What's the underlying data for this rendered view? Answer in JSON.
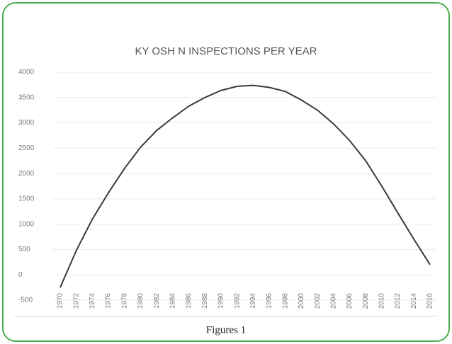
{
  "chart_data": {
    "type": "line",
    "title": "KY OSH N INSPECTIONS  PER YEAR",
    "caption": "Figures 1",
    "categories": [
      "1970",
      "1972",
      "1974",
      "1976",
      "1978",
      "1980",
      "1982",
      "1984",
      "1986",
      "1988",
      "1990",
      "1992",
      "1994",
      "1996",
      "1998",
      "2000",
      "2002",
      "2004",
      "2006",
      "2008",
      "2010",
      "2012",
      "2014",
      "2016"
    ],
    "series": [
      {
        "name": "Inspections",
        "color": "#3a3a3a",
        "values": [
          -250,
          480,
          1100,
          1620,
          2100,
          2520,
          2850,
          3100,
          3330,
          3500,
          3640,
          3720,
          3740,
          3700,
          3620,
          3450,
          3250,
          2980,
          2650,
          2250,
          1750,
          1220,
          700,
          200
        ]
      }
    ],
    "ylim": [
      -500,
      4000
    ],
    "yticks": [
      -500,
      0,
      500,
      1000,
      1500,
      2000,
      2500,
      3000,
      3500,
      4000
    ],
    "grid": true
  }
}
